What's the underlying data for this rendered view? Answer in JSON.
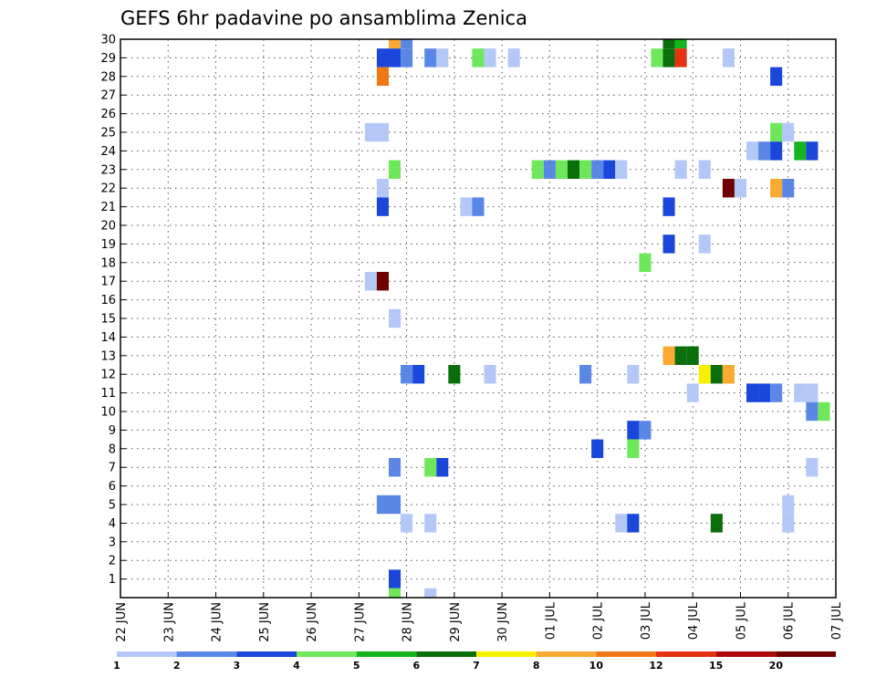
{
  "chart_data": {
    "type": "heatmap",
    "title": "GEFS 6hr padavine po ansamblima Zenica",
    "xlabel": "",
    "ylabel": "",
    "x_ticks": [
      "22 JUN",
      "23 JUN",
      "24 JUN",
      "25 JUN",
      "26 JUN",
      "27 JUN",
      "28 JUN",
      "29 JUN",
      "30 JUN",
      "01 JUL",
      "02 JUL",
      "03 JUL",
      "04 JUL",
      "05 JUL",
      "06 JUL",
      "07 JUL"
    ],
    "x_range_days": [
      0,
      15
    ],
    "y_ticks": [
      1,
      2,
      3,
      4,
      5,
      6,
      7,
      8,
      9,
      10,
      11,
      12,
      13,
      14,
      15,
      16,
      17,
      18,
      19,
      20,
      21,
      22,
      23,
      24,
      25,
      26,
      27,
      28,
      29,
      30
    ],
    "y_range": [
      0,
      30
    ],
    "grid": true,
    "legend": {
      "placement": "bottom",
      "labels": [
        "1",
        "2",
        "3",
        "4",
        "5",
        "6",
        "7",
        "8",
        "10",
        "12",
        "15",
        "20"
      ],
      "colors": [
        "#b4c8f8",
        "#5a87e6",
        "#1a46d9",
        "#6ee85a",
        "#16b41e",
        "#0a6e0a",
        "#f8f000",
        "#f8aa32",
        "#f07814",
        "#e43212",
        "#ae0c0c",
        "#6e0000"
      ]
    },
    "cells_note": "each cell: day offset from 22 JUN (x), ensemble member (y), colour class",
    "cells": [
      {
        "x": 5.75,
        "y": 30,
        "c": "#f8aa32"
      },
      {
        "x": 6.0,
        "y": 30,
        "c": "#5a87e6"
      },
      {
        "x": 11.5,
        "y": 30,
        "c": "#0a6e0a"
      },
      {
        "x": 11.75,
        "y": 30,
        "c": "#16b41e"
      },
      {
        "x": 5.5,
        "y": 29,
        "c": "#1a46d9"
      },
      {
        "x": 5.75,
        "y": 29,
        "c": "#1a46d9"
      },
      {
        "x": 6.0,
        "y": 29,
        "c": "#5a87e6"
      },
      {
        "x": 6.5,
        "y": 29,
        "c": "#5a87e6"
      },
      {
        "x": 6.75,
        "y": 29,
        "c": "#b4c8f8"
      },
      {
        "x": 7.5,
        "y": 29,
        "c": "#6ee85a"
      },
      {
        "x": 7.75,
        "y": 29,
        "c": "#b4c8f8"
      },
      {
        "x": 8.25,
        "y": 29,
        "c": "#b4c8f8"
      },
      {
        "x": 11.25,
        "y": 29,
        "c": "#6ee85a"
      },
      {
        "x": 11.5,
        "y": 29,
        "c": "#0a6e0a"
      },
      {
        "x": 11.75,
        "y": 29,
        "c": "#e43212"
      },
      {
        "x": 12.75,
        "y": 29,
        "c": "#b4c8f8"
      },
      {
        "x": 5.5,
        "y": 28,
        "c": "#f07814"
      },
      {
        "x": 13.75,
        "y": 28,
        "c": "#1a46d9"
      },
      {
        "x": 5.25,
        "y": 25,
        "c": "#b4c8f8"
      },
      {
        "x": 5.5,
        "y": 25,
        "c": "#b4c8f8"
      },
      {
        "x": 13.75,
        "y": 25,
        "c": "#6ee85a"
      },
      {
        "x": 14.0,
        "y": 25,
        "c": "#b4c8f8"
      },
      {
        "x": 13.25,
        "y": 24,
        "c": "#b4c8f8"
      },
      {
        "x": 13.5,
        "y": 24,
        "c": "#5a87e6"
      },
      {
        "x": 13.75,
        "y": 24,
        "c": "#1a46d9"
      },
      {
        "x": 14.25,
        "y": 24,
        "c": "#16b41e"
      },
      {
        "x": 14.5,
        "y": 24,
        "c": "#1a46d9"
      },
      {
        "x": 5.75,
        "y": 23,
        "c": "#6ee85a"
      },
      {
        "x": 8.75,
        "y": 23,
        "c": "#6ee85a"
      },
      {
        "x": 9.0,
        "y": 23,
        "c": "#5a87e6"
      },
      {
        "x": 9.25,
        "y": 23,
        "c": "#6ee85a"
      },
      {
        "x": 9.5,
        "y": 23,
        "c": "#0a6e0a"
      },
      {
        "x": 9.75,
        "y": 23,
        "c": "#6ee85a"
      },
      {
        "x": 10.0,
        "y": 23,
        "c": "#5a87e6"
      },
      {
        "x": 10.25,
        "y": 23,
        "c": "#1a46d9"
      },
      {
        "x": 10.5,
        "y": 23,
        "c": "#b4c8f8"
      },
      {
        "x": 11.75,
        "y": 23,
        "c": "#b4c8f8"
      },
      {
        "x": 12.25,
        "y": 23,
        "c": "#b4c8f8"
      },
      {
        "x": 5.5,
        "y": 22,
        "c": "#b4c8f8"
      },
      {
        "x": 12.75,
        "y": 22,
        "c": "#6e0000"
      },
      {
        "x": 13.0,
        "y": 22,
        "c": "#b4c8f8"
      },
      {
        "x": 13.75,
        "y": 22,
        "c": "#f8aa32"
      },
      {
        "x": 14.0,
        "y": 22,
        "c": "#5a87e6"
      },
      {
        "x": 5.5,
        "y": 21,
        "c": "#1a46d9"
      },
      {
        "x": 7.25,
        "y": 21,
        "c": "#b4c8f8"
      },
      {
        "x": 7.5,
        "y": 21,
        "c": "#5a87e6"
      },
      {
        "x": 11.5,
        "y": 21,
        "c": "#1a46d9"
      },
      {
        "x": 11.5,
        "y": 19,
        "c": "#1a46d9"
      },
      {
        "x": 12.25,
        "y": 19,
        "c": "#b4c8f8"
      },
      {
        "x": 11.0,
        "y": 18,
        "c": "#6ee85a"
      },
      {
        "x": 5.25,
        "y": 17,
        "c": "#b4c8f8"
      },
      {
        "x": 5.5,
        "y": 17,
        "c": "#6e0000"
      },
      {
        "x": 5.75,
        "y": 15,
        "c": "#b4c8f8"
      },
      {
        "x": 11.5,
        "y": 13,
        "c": "#f8aa32"
      },
      {
        "x": 11.75,
        "y": 13,
        "c": "#0a6e0a"
      },
      {
        "x": 12.0,
        "y": 13,
        "c": "#0a6e0a"
      },
      {
        "x": 6.0,
        "y": 12,
        "c": "#5a87e6"
      },
      {
        "x": 6.25,
        "y": 12,
        "c": "#1a46d9"
      },
      {
        "x": 7.0,
        "y": 12,
        "c": "#0a6e0a"
      },
      {
        "x": 7.75,
        "y": 12,
        "c": "#b4c8f8"
      },
      {
        "x": 9.75,
        "y": 12,
        "c": "#5a87e6"
      },
      {
        "x": 10.75,
        "y": 12,
        "c": "#b4c8f8"
      },
      {
        "x": 12.25,
        "y": 12,
        "c": "#f8f000"
      },
      {
        "x": 12.5,
        "y": 12,
        "c": "#0a6e0a"
      },
      {
        "x": 12.75,
        "y": 12,
        "c": "#f8aa32"
      },
      {
        "x": 12.0,
        "y": 11,
        "c": "#b4c8f8"
      },
      {
        "x": 13.25,
        "y": 11,
        "c": "#1a46d9"
      },
      {
        "x": 13.5,
        "y": 11,
        "c": "#1a46d9"
      },
      {
        "x": 13.75,
        "y": 11,
        "c": "#5a87e6"
      },
      {
        "x": 14.25,
        "y": 11,
        "c": "#b4c8f8"
      },
      {
        "x": 14.5,
        "y": 11,
        "c": "#b4c8f8"
      },
      {
        "x": 14.5,
        "y": 10,
        "c": "#5a87e6"
      },
      {
        "x": 14.75,
        "y": 10,
        "c": "#6ee85a"
      },
      {
        "x": 10.75,
        "y": 9,
        "c": "#1a46d9"
      },
      {
        "x": 11.0,
        "y": 9,
        "c": "#5a87e6"
      },
      {
        "x": 10.0,
        "y": 8,
        "c": "#1a46d9"
      },
      {
        "x": 10.75,
        "y": 8,
        "c": "#6ee85a"
      },
      {
        "x": 5.75,
        "y": 7,
        "c": "#5a87e6"
      },
      {
        "x": 6.5,
        "y": 7,
        "c": "#6ee85a"
      },
      {
        "x": 6.75,
        "y": 7,
        "c": "#1a46d9"
      },
      {
        "x": 14.5,
        "y": 7,
        "c": "#b4c8f8"
      },
      {
        "x": 5.5,
        "y": 5,
        "c": "#5a87e6"
      },
      {
        "x": 5.75,
        "y": 5,
        "c": "#5a87e6"
      },
      {
        "x": 14.0,
        "y": 5,
        "c": "#b4c8f8"
      },
      {
        "x": 6.0,
        "y": 4,
        "c": "#b4c8f8"
      },
      {
        "x": 6.5,
        "y": 4,
        "c": "#b4c8f8"
      },
      {
        "x": 10.5,
        "y": 4,
        "c": "#b4c8f8"
      },
      {
        "x": 10.75,
        "y": 4,
        "c": "#1a46d9"
      },
      {
        "x": 12.5,
        "y": 4,
        "c": "#0a6e0a"
      },
      {
        "x": 14.0,
        "y": 4,
        "c": "#b4c8f8"
      },
      {
        "x": 5.75,
        "y": 1,
        "c": "#1a46d9"
      },
      {
        "x": 5.75,
        "y": 0,
        "c": "#6ee85a"
      },
      {
        "x": 6.5,
        "y": 0,
        "c": "#b4c8f8"
      }
    ]
  }
}
